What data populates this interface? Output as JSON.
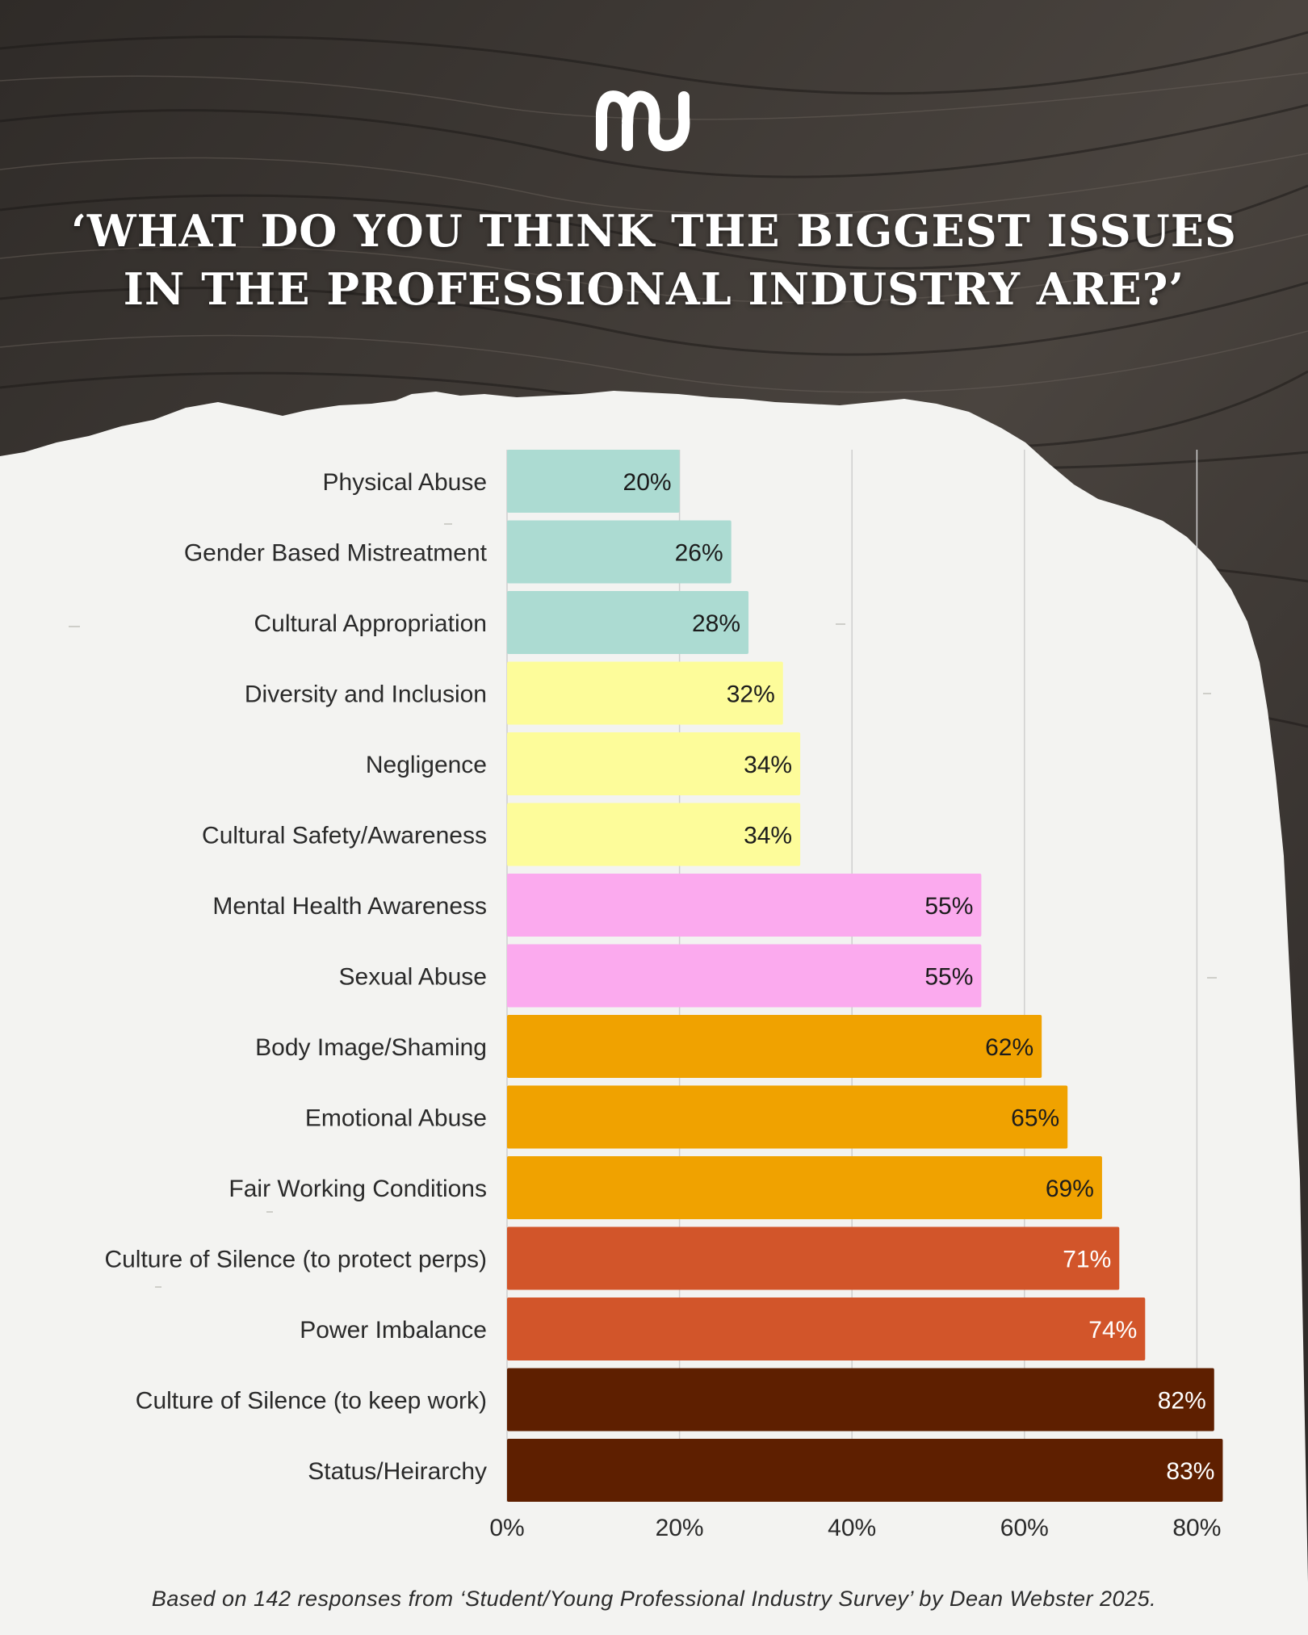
{
  "title_lines": [
    "‘WHAT DO YOU THINK THE BIGGEST ISSUES",
    "IN THE PROFESSIONAL INDUSTRY ARE?’"
  ],
  "footnote": "Based on 142 responses from ‘Student/Young Professional Industry Survey’ by Dean Webster 2025.",
  "logo_icon": "squiggle-logo-icon",
  "colors": {
    "teal": "#acdbd2",
    "yellow": "#fdfc9a",
    "pink": "#fbaaee",
    "orange": "#f0a200",
    "rust": "#d2552a",
    "brown": "#5e1f00",
    "paper": "#f3f3f1",
    "dark_bg": "#3b3632"
  },
  "chart_data": {
    "type": "bar",
    "orientation": "horizontal",
    "title": "‘WHAT DO YOU THINK THE BIGGEST ISSUES IN THE PROFESSIONAL INDUSTRY ARE?’",
    "categories": [
      "Physical Abuse",
      "Gender Based Mistreatment",
      "Cultural Appropriation",
      "Diversity and Inclusion",
      "Negligence",
      "Cultural Safety/Awareness",
      "Mental Health Awareness",
      "Sexual Abuse",
      "Body Image/Shaming",
      "Emotional Abuse",
      "Fair Working Conditions",
      "Culture of Silence (to protect perps)",
      "Power Imbalance",
      "Culture of Silence (to keep work)",
      "Status/Heirarchy"
    ],
    "values": [
      20,
      26,
      28,
      32,
      34,
      34,
      55,
      55,
      62,
      65,
      69,
      71,
      74,
      82,
      83
    ],
    "value_labels": [
      "20%",
      "26%",
      "28%",
      "32%",
      "34%",
      "34%",
      "55%",
      "55%",
      "62%",
      "65%",
      "69%",
      "71%",
      "74%",
      "82%",
      "83%"
    ],
    "bar_colors": [
      "#acdbd2",
      "#acdbd2",
      "#acdbd2",
      "#fdfc9a",
      "#fdfc9a",
      "#fdfc9a",
      "#fbaaee",
      "#fbaaee",
      "#f0a200",
      "#f0a200",
      "#f0a200",
      "#d2552a",
      "#d2552a",
      "#5e1f00",
      "#5e1f00"
    ],
    "label_colors": [
      "#1c1c1c",
      "#1c1c1c",
      "#1c1c1c",
      "#1c1c1c",
      "#1c1c1c",
      "#1c1c1c",
      "#1c1c1c",
      "#1c1c1c",
      "#1c1c1c",
      "#1c1c1c",
      "#1c1c1c",
      "#ffffff",
      "#ffffff",
      "#ffffff",
      "#ffffff"
    ],
    "x_ticks": [
      "0%",
      "20%",
      "40%",
      "60%",
      "80%"
    ],
    "x_tick_values": [
      0,
      20,
      40,
      60,
      80
    ],
    "xlim": [
      0,
      80
    ],
    "xlabel": "",
    "ylabel": "",
    "grid": "vertical"
  }
}
